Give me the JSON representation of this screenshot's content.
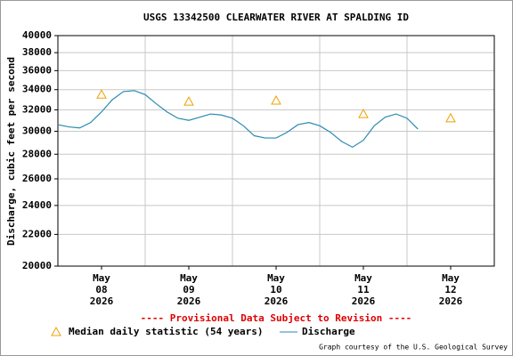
{
  "chart_data": {
    "type": "line",
    "title": "USGS 13342500 CLEARWATER RIVER AT SPALDING ID",
    "y_label": "Discharge, cubic feet per second",
    "annotation": "---- Provisional Data Subject to Revision ----",
    "credit": "Graph courtesy of the U.S. Geological Survey",
    "log_y": true,
    "grid": true,
    "ylim": [
      20000,
      40000
    ],
    "yticks": [
      20000,
      22000,
      24000,
      26000,
      28000,
      30000,
      32000,
      34000,
      36000,
      38000,
      40000
    ],
    "xlim": [
      "2026-05-08 00:00",
      "2026-05-13 00:00"
    ],
    "x_labels": [
      {
        "value": "2026-05-08 12:00",
        "label": [
          "May",
          "08",
          "2026"
        ]
      },
      {
        "value": "2026-05-09 12:00",
        "label": [
          "May",
          "09",
          "2026"
        ]
      },
      {
        "value": "2026-05-10 12:00",
        "label": [
          "May",
          "10",
          "2026"
        ]
      },
      {
        "value": "2026-05-11 12:00",
        "label": [
          "May",
          "11",
          "2026"
        ]
      },
      {
        "value": "2026-05-12 12:00",
        "label": [
          "May",
          "12",
          "2026"
        ]
      }
    ],
    "series": [
      {
        "name": "Median daily statistic (54 years)",
        "color": "#f0a000",
        "marker": "triangle",
        "x": [
          "2026-05-08 12:00",
          "2026-05-09 12:00",
          "2026-05-10 12:00",
          "2026-05-11 12:00",
          "2026-05-12 12:00"
        ],
        "values": [
          33500,
          32800,
          32900,
          31600,
          31200
        ]
      },
      {
        "name": "Discharge",
        "color": "#2a8ab0",
        "marker": "line",
        "x": [
          "2026-05-08 00:00",
          "2026-05-08 03:00",
          "2026-05-08 06:00",
          "2026-05-08 09:00",
          "2026-05-08 12:00",
          "2026-05-08 15:00",
          "2026-05-08 18:00",
          "2026-05-08 21:00",
          "2026-05-09 00:00",
          "2026-05-09 03:00",
          "2026-05-09 06:00",
          "2026-05-09 09:00",
          "2026-05-09 12:00",
          "2026-05-09 15:00",
          "2026-05-09 18:00",
          "2026-05-09 21:00",
          "2026-05-10 00:00",
          "2026-05-10 03:00",
          "2026-05-10 06:00",
          "2026-05-10 09:00",
          "2026-05-10 12:00",
          "2026-05-10 15:00",
          "2026-05-10 18:00",
          "2026-05-10 21:00",
          "2026-05-11 00:00",
          "2026-05-11 03:00",
          "2026-05-11 06:00",
          "2026-05-11 09:00",
          "2026-05-11 12:00",
          "2026-05-11 15:00",
          "2026-05-11 18:00",
          "2026-05-11 21:00",
          "2026-05-12 00:00",
          "2026-05-12 03:00"
        ],
        "values": [
          30600,
          30400,
          30300,
          30800,
          31800,
          33000,
          33800,
          33900,
          33500,
          32600,
          31800,
          31200,
          31000,
          31300,
          31600,
          31500,
          31200,
          30500,
          29600,
          29400,
          29400,
          29900,
          30600,
          30800,
          30500,
          29900,
          29100,
          28600,
          29200,
          30500,
          31300,
          31600,
          31200,
          30200
        ]
      }
    ]
  }
}
